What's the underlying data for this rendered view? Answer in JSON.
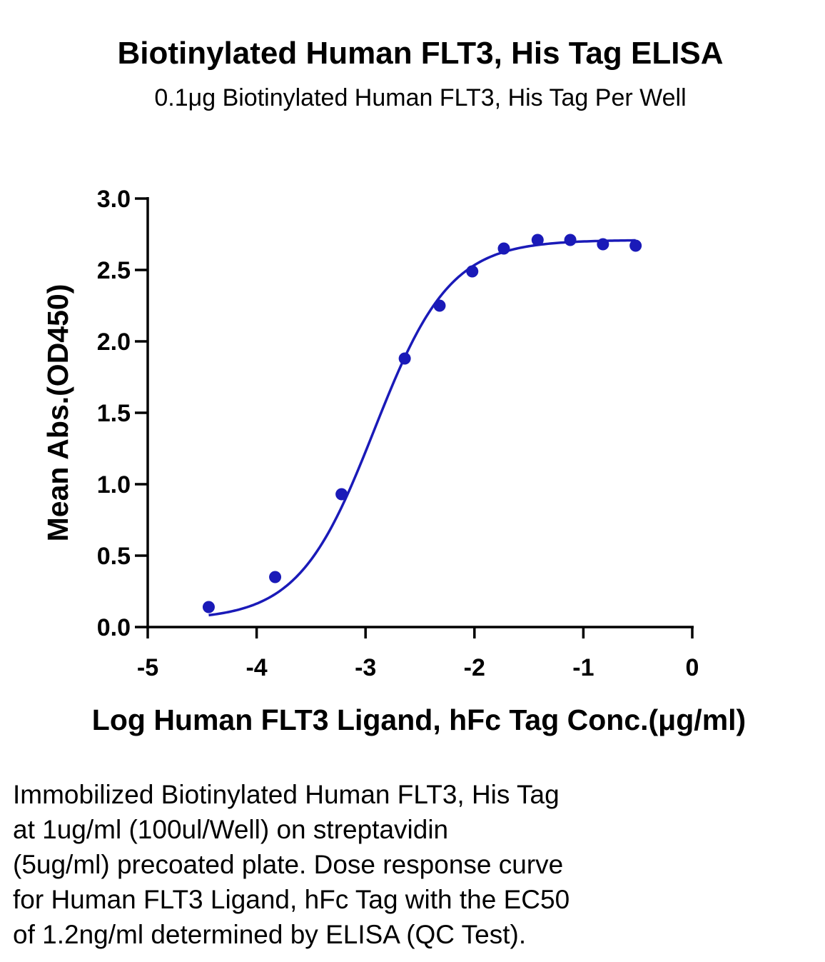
{
  "chart_data": {
    "type": "scatter",
    "title": "Biotinylated Human FLT3, His Tag ELISA",
    "subtitle": "0.1μg Biotinylated Human FLT3, His Tag Per Well",
    "xlabel": "Log Human FLT3 Ligand, hFc Tag Conc.(μg/ml)",
    "ylabel": "Mean Abs.(OD450)",
    "xlim": [
      -5,
      0
    ],
    "ylim": [
      0,
      3.0
    ],
    "x_ticks": [
      "-5",
      "-4",
      "-3",
      "-2",
      "-1",
      "0"
    ],
    "y_ticks": [
      "0.0",
      "0.5",
      "1.0",
      "1.5",
      "2.0",
      "2.5",
      "3.0"
    ],
    "series": [
      {
        "points": [
          {
            "x": -4.44,
            "y": 0.14
          },
          {
            "x": -3.83,
            "y": 0.35
          },
          {
            "x": -3.22,
            "y": 0.93
          },
          {
            "x": -2.64,
            "y": 1.88
          },
          {
            "x": -2.32,
            "y": 2.25
          },
          {
            "x": -2.02,
            "y": 2.49
          },
          {
            "x": -1.73,
            "y": 2.65
          },
          {
            "x": -1.42,
            "y": 2.71
          },
          {
            "x": -1.12,
            "y": 2.71
          },
          {
            "x": -0.82,
            "y": 2.68
          },
          {
            "x": -0.52,
            "y": 2.67
          }
        ]
      }
    ],
    "fit_curve": {
      "model": "4PL",
      "bottom": 0.05,
      "top": 2.71,
      "log_ec50": -2.92,
      "hill": 1.25
    },
    "color": "#1a1ab8",
    "grid": false
  },
  "caption_lines": [
    "Immobilized Biotinylated Human FLT3, His Tag",
    "at 1ug/ml (100ul/Well) on streptavidin",
    "(5ug/ml) precoated plate. Dose response curve",
    "for Human FLT3 Ligand, hFc Tag with the EC50",
    "of 1.2ng/ml determined by ELISA (QC Test)."
  ]
}
